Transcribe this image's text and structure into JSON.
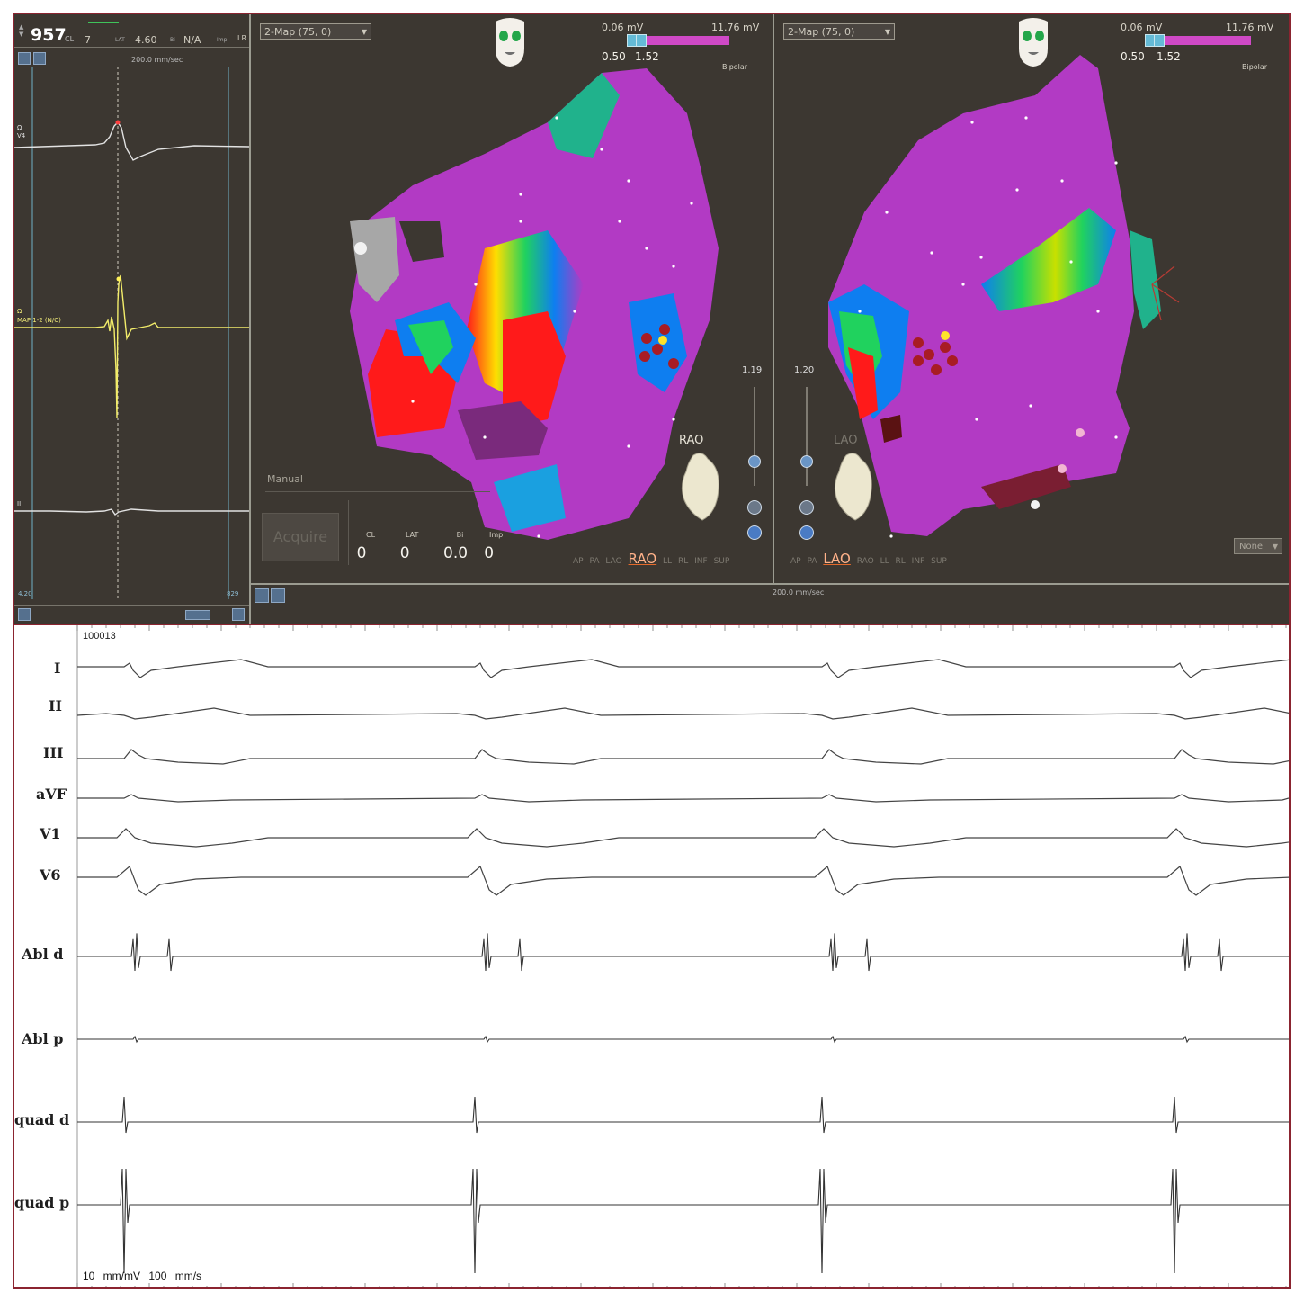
{
  "signals_panel": {
    "cycle_length": "957",
    "cycle_length_label": "CL",
    "stats": [
      "7",
      "LAT",
      "4.60",
      "Bi",
      "N/A",
      "Imp",
      "LR"
    ],
    "sweep_speed": "200.0 mm/sec",
    "traces": [
      {
        "label": "V4",
        "sub": "Ω",
        "color": "#e2e2e2"
      },
      {
        "label": "MAP 1-2 (N/C)",
        "sub": "Ω",
        "color": "#f2ec6a"
      },
      {
        "label": "II",
        "sub": "",
        "color": "#e2e2e2"
      }
    ],
    "edge_left": "4.20",
    "edge_right": "829"
  },
  "map_left": {
    "map_select": "2-Map (75, 0)",
    "range_min": "0.06 mV",
    "range_max": "11.76 mV",
    "range_low_value": "0.50",
    "range_high_value": "1.52",
    "mode": "Bipolar",
    "orientation_label": "RAO",
    "slider_value": "1.19",
    "manual_label": "Manual",
    "acquire_label": "Acquire",
    "metrics": [
      {
        "label": "CL",
        "value": "0"
      },
      {
        "label": "LAT",
        "value": "0"
      },
      {
        "label": "Bi",
        "value": "0.0"
      },
      {
        "label": "Imp",
        "value": "0"
      }
    ],
    "views": [
      "AP",
      "PA",
      "LAO",
      "RAO",
      "LL",
      "RL",
      "INF",
      "SUP"
    ],
    "selected_view": "RAO"
  },
  "map_right": {
    "map_select": "2-Map (75, 0)",
    "range_min": "0.06 mV",
    "range_max": "11.76 mV",
    "range_low_value": "0.50",
    "range_high_value": "1.52",
    "mode": "Bipolar",
    "orientation_label": "LAO",
    "slider_value": "1.20",
    "none_select": "None",
    "views": [
      "AP",
      "PA",
      "LAO",
      "RAO",
      "LL",
      "RL",
      "INF",
      "SUP"
    ],
    "selected_view": "LAO"
  },
  "bottom_strip": {
    "sweep_speed": "200.0 mm/sec"
  },
  "ecg": {
    "record_id": "100013",
    "gain": "10 mm/mV",
    "speed": "100 mm/s",
    "leads": [
      "I",
      "II",
      "III",
      "aVF",
      "V1",
      "V6",
      "Abl d",
      "Abl p",
      "quad d",
      "quad p"
    ]
  },
  "colors": {
    "frame": "#8b2430",
    "panel_bg": "#3c3731",
    "map_purple": "#b23ac4",
    "selected_view": "#ffb28a"
  }
}
